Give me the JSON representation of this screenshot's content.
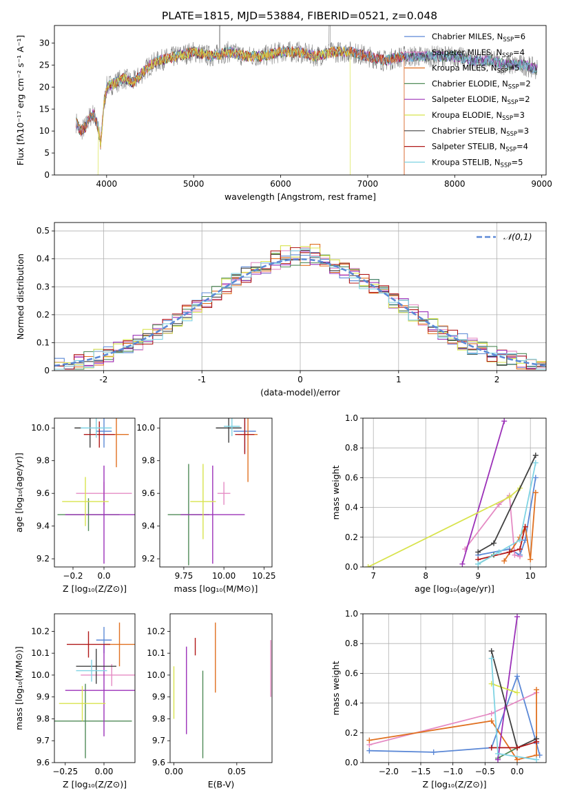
{
  "figure": {
    "title": "PLATE=1815, MJD=53884, FIBERID=0521, z=0.048",
    "models": [
      {
        "label": "Chabrier MILES, N",
        "sub": "SSP",
        "suffix": "=6",
        "color": "#5b88d6"
      },
      {
        "label": "Salpeter MILES, N",
        "sub": "SSP",
        "suffix": "=4",
        "color": "#e58bc4"
      },
      {
        "label": "Kroupa MILES, N",
        "sub": "SSP",
        "suffix": "=5",
        "color": "#e07020"
      },
      {
        "label": "Chabrier ELODIE, N",
        "sub": "SSP",
        "suffix": "=2",
        "color": "#4f8a57"
      },
      {
        "label": "Salpeter ELODIE, N",
        "sub": "SSP",
        "suffix": "=2",
        "color": "#9b30b8"
      },
      {
        "label": "Kroupa ELODIE, N",
        "sub": "SSP",
        "suffix": "=3",
        "color": "#d8e34c"
      },
      {
        "label": "Chabrier STELIB, N",
        "sub": "SSP",
        "suffix": "=3",
        "color": "#404040"
      },
      {
        "label": "Salpeter STELIB, N",
        "sub": "SSP",
        "suffix": "=4",
        "color": "#b01818"
      },
      {
        "label": "Kroupa STELIB, N",
        "sub": "SSP",
        "suffix": "=5",
        "color": "#7fd3e3"
      }
    ]
  },
  "chart_data": [
    {
      "type": "line",
      "id": "spectrum",
      "xlabel": "wavelength [Angstrom, rest frame]",
      "ylabel": "Flux [fλ10⁻¹⁷ erg cm⁻² s⁻¹ A⁻¹]",
      "xlim": [
        3400,
        9050
      ],
      "ylim": [
        0,
        34
      ],
      "xticks": [
        4000,
        5000,
        6000,
        7000,
        8000,
        9000
      ],
      "yticks": [
        0,
        5,
        10,
        15,
        20,
        25,
        30
      ],
      "observed_color": "#808080",
      "continuum_anchors": {
        "x": [
          3650,
          3700,
          3760,
          3800,
          3850,
          3900,
          3930,
          3970,
          4000,
          4100,
          4200,
          4300,
          4400,
          4500,
          4600,
          4800,
          5000,
          5200,
          5400,
          5600,
          5800,
          6000,
          6200,
          6400,
          6600,
          6800,
          7000,
          7200,
          7400,
          7600,
          7800,
          8000,
          8200,
          8400,
          8600,
          8800,
          8950
        ],
        "y": [
          12,
          10,
          11,
          13,
          14,
          11,
          7,
          16,
          20,
          21,
          22,
          21,
          23,
          25,
          26,
          27,
          28,
          27,
          28,
          27,
          27,
          28,
          28,
          27,
          28,
          28,
          27,
          26,
          27,
          27,
          27,
          27,
          26,
          26,
          25,
          25,
          24
        ]
      },
      "model_cutoffs": {
        "Kroupa ELODIE": [
          3900,
          6800
        ],
        "Salpeter STELIB": [
          3650,
          7420
        ],
        "Kroupa MILES": [
          3650,
          7420
        ]
      }
    },
    {
      "type": "step",
      "id": "residual-histogram",
      "xlabel": "(data-model)/error",
      "ylabel": "Normed distribution",
      "xlim": [
        -2.5,
        2.5
      ],
      "ylim": [
        0,
        0.53
      ],
      "xticks": [
        -2,
        -1,
        0,
        1,
        2
      ],
      "yticks": [
        0,
        0.1,
        0.2,
        0.3,
        0.4,
        0.5
      ],
      "bin_width": 0.1,
      "reference": {
        "name": "𝒩(0,1)",
        "color": "#5b88d6"
      }
    },
    {
      "type": "scatter",
      "id": "age-vs-Z",
      "xlabel": "Z [log₁₀(Z/Z⊙)]",
      "ylabel": "age  [log₁₀(age/yr)]",
      "xlim": [
        -0.32,
        0.2
      ],
      "ylim": [
        9.15,
        10.06
      ],
      "xticks": [
        -0.2,
        0.0
      ],
      "yticks": [
        9.2,
        9.4,
        9.6,
        9.8,
        10.0
      ],
      "points": [
        {
          "x": 0.0,
          "y": 9.98,
          "xerr": 0.05,
          "yerr": 0.1,
          "c": 0
        },
        {
          "x": 0.0,
          "y": 9.6,
          "xerr": 0.18,
          "yerr": 0.07,
          "c": 1
        },
        {
          "x": 0.08,
          "y": 9.96,
          "xerr": 0.08,
          "yerr": 0.2,
          "c": 2
        },
        {
          "x": -0.1,
          "y": 9.47,
          "xerr": 0.2,
          "yerr": 0.1,
          "c": 3
        },
        {
          "x": 0.0,
          "y": 9.47,
          "xerr": 0.25,
          "yerr": 0.3,
          "c": 4
        },
        {
          "x": -0.12,
          "y": 9.55,
          "xerr": 0.15,
          "yerr": 0.15,
          "c": 5
        },
        {
          "x": -0.09,
          "y": 10.0,
          "xerr": 0.1,
          "yerr": 0.12,
          "c": 6
        },
        {
          "x": -0.03,
          "y": 9.96,
          "xerr": 0.1,
          "yerr": 0.08,
          "c": 7
        },
        {
          "x": -0.05,
          "y": 10.0,
          "xerr": 0.1,
          "yerr": 0.06,
          "c": 8
        }
      ]
    },
    {
      "type": "scatter",
      "id": "age-vs-mass",
      "xlabel": "mass [log₁₀(M/M⊙)]",
      "ylabel": "",
      "xlim": [
        9.6,
        10.3
      ],
      "ylim": [
        9.15,
        10.06
      ],
      "xticks": [
        9.75,
        10.0,
        10.25
      ],
      "yticks": [
        9.2,
        9.4,
        9.6,
        9.8,
        10.0
      ],
      "points": [
        {
          "x": 10.13,
          "y": 9.98,
          "xerr": 0.07,
          "yerr": 0.13,
          "c": 0
        },
        {
          "x": 10.0,
          "y": 9.6,
          "xerr": 0.04,
          "yerr": 0.07,
          "c": 1
        },
        {
          "x": 10.15,
          "y": 9.96,
          "xerr": 0.06,
          "yerr": 0.29,
          "c": 2
        },
        {
          "x": 9.78,
          "y": 9.47,
          "xerr": 0.13,
          "yerr": 0.31,
          "c": 3
        },
        {
          "x": 9.93,
          "y": 9.47,
          "xerr": 0.2,
          "yerr": 0.3,
          "c": 4
        },
        {
          "x": 9.87,
          "y": 9.55,
          "xerr": 0.08,
          "yerr": 0.23,
          "c": 5
        },
        {
          "x": 10.03,
          "y": 10.0,
          "xerr": 0.08,
          "yerr": 0.09,
          "c": 6
        },
        {
          "x": 10.13,
          "y": 9.96,
          "xerr": 0.06,
          "yerr": 0.12,
          "c": 7
        },
        {
          "x": 10.05,
          "y": 10.01,
          "xerr": 0.05,
          "yerr": 0.06,
          "c": 8
        }
      ]
    },
    {
      "type": "line",
      "id": "weight-vs-age",
      "xlabel": "age  [log₁₀(age/yr)]",
      "ylabel": "mass weight",
      "xlim": [
        6.8,
        10.3
      ],
      "ylim": [
        0,
        1
      ],
      "xticks": [
        7,
        8,
        9,
        10
      ],
      "yticks": [
        0,
        0.2,
        0.4,
        0.6,
        0.8,
        1.0
      ],
      "series": [
        {
          "c": 0,
          "x": [
            9.0,
            9.6,
            9.8,
            9.9,
            10.1
          ],
          "y": [
            0.08,
            0.12,
            0.08,
            0.18,
            0.6
          ]
        },
        {
          "c": 1,
          "x": [
            8.75,
            9.4,
            9.6,
            9.7,
            9.8
          ],
          "y": [
            0.12,
            0.42,
            0.48,
            0.08,
            0.07
          ]
        },
        {
          "c": 2,
          "x": [
            9.5,
            9.8,
            9.9,
            10.0,
            10.1
          ],
          "y": [
            0.04,
            0.2,
            0.27,
            0.05,
            0.5
          ]
        },
        {
          "c": 3,
          "x": [
            9.0,
            9.3
          ],
          "y": [
            0.02,
            0.08
          ]
        },
        {
          "c": 4,
          "x": [
            8.7,
            9.5
          ],
          "y": [
            0.02,
            0.98
          ]
        },
        {
          "c": 5,
          "x": [
            6.9,
            9.6,
            9.8
          ],
          "y": [
            0.0,
            0.47,
            0.53
          ]
        },
        {
          "c": 6,
          "x": [
            9.0,
            9.3,
            10.1
          ],
          "y": [
            0.1,
            0.16,
            0.75
          ]
        },
        {
          "c": 7,
          "x": [
            9.0,
            9.6,
            9.8,
            9.9
          ],
          "y": [
            0.05,
            0.1,
            0.12,
            0.27
          ]
        },
        {
          "c": 8,
          "x": [
            9.0,
            9.4,
            9.8,
            10.1
          ],
          "y": [
            0.02,
            0.1,
            0.18,
            0.7
          ]
        }
      ]
    },
    {
      "type": "scatter",
      "id": "mass-vs-Z",
      "xlabel": "Z [log₁₀(Z/Z⊙)]",
      "ylabel": "mass [log₁₀(M/M⊙)]",
      "xlim": [
        -0.32,
        0.2
      ],
      "ylim": [
        9.6,
        10.28
      ],
      "xticks": [
        -0.25,
        0.0
      ],
      "yticks": [
        9.6,
        9.7,
        9.8,
        9.9,
        10.0,
        10.1,
        10.2
      ],
      "points": [
        {
          "x": 0.0,
          "y": 10.16,
          "xerr": 0.05,
          "yerr": 0.06,
          "c": 0
        },
        {
          "x": 0.05,
          "y": 10.0,
          "xerr": 0.2,
          "yerr": 0.05,
          "c": 1
        },
        {
          "x": 0.1,
          "y": 10.14,
          "xerr": 0.1,
          "yerr": 0.1,
          "c": 2
        },
        {
          "x": -0.12,
          "y": 9.79,
          "xerr": 0.3,
          "yerr": 0.17,
          "c": 3
        },
        {
          "x": 0.0,
          "y": 9.93,
          "xerr": 0.25,
          "yerr": 0.21,
          "c": 4
        },
        {
          "x": -0.14,
          "y": 9.87,
          "xerr": 0.15,
          "yerr": 0.08,
          "c": 5
        },
        {
          "x": -0.05,
          "y": 10.04,
          "xerr": 0.13,
          "yerr": 0.08,
          "c": 6
        },
        {
          "x": -0.1,
          "y": 10.14,
          "xerr": 0.14,
          "yerr": 0.06,
          "c": 7
        },
        {
          "x": -0.08,
          "y": 10.02,
          "xerr": 0.1,
          "yerr": 0.05,
          "c": 8
        }
      ]
    },
    {
      "type": "errorbar",
      "id": "mass-vs-EBV",
      "xlabel": "E(B-V)",
      "ylabel": "",
      "xlim": [
        -0.003,
        0.078
      ],
      "ylim": [
        9.6,
        10.28
      ],
      "xticks": [
        0.0,
        0.05
      ],
      "xticklabels": [
        "0.00",
        "0.05"
      ],
      "yticks": [
        9.6,
        9.7,
        9.8,
        9.9,
        10.0,
        10.1,
        10.2
      ],
      "points": [
        {
          "x": 0.0,
          "y": 9.92,
          "yerr": 0.12,
          "c": 5
        },
        {
          "x": 0.01,
          "y": 9.93,
          "yerr": 0.2,
          "c": 4
        },
        {
          "x": 0.017,
          "y": 10.13,
          "yerr": 0.04,
          "c": 7
        },
        {
          "x": 0.023,
          "y": 9.82,
          "yerr": 0.2,
          "c": 3
        },
        {
          "x": 0.033,
          "y": 10.08,
          "yerr": 0.16,
          "c": 2
        },
        {
          "x": 0.077,
          "y": 10.03,
          "yerr": 0.13,
          "c": 1
        }
      ]
    },
    {
      "type": "line",
      "id": "weight-vs-Z",
      "xlabel": "Z [log₁₀(Z/Z⊙)]",
      "ylabel": "mass weight",
      "xlim": [
        -2.4,
        0.45
      ],
      "ylim": [
        0,
        1
      ],
      "xticks": [
        -2.0,
        -1.5,
        -1.0,
        -0.5,
        0.0
      ],
      "yticks": [
        0,
        0.2,
        0.4,
        0.6,
        0.8,
        1.0
      ],
      "series": [
        {
          "c": 0,
          "x": [
            -2.3,
            -1.3,
            -0.4,
            0.0,
            0.3,
            0.35
          ],
          "y": [
            0.08,
            0.07,
            0.1,
            0.58,
            0.13,
            0.05
          ]
        },
        {
          "c": 1,
          "x": [
            -2.3,
            -0.4,
            0.3
          ],
          "y": [
            0.12,
            0.33,
            0.47
          ]
        },
        {
          "c": 2,
          "x": [
            -2.3,
            -0.4,
            0.0,
            0.3,
            0.3
          ],
          "y": [
            0.15,
            0.28,
            0.02,
            0.05,
            0.49
          ]
        },
        {
          "c": 3,
          "x": [
            -0.3,
            0.0
          ],
          "y": [
            0.03,
            0.1
          ]
        },
        {
          "c": 4,
          "x": [
            -0.3,
            0.0
          ],
          "y": [
            0.02,
            0.98
          ]
        },
        {
          "c": 5,
          "x": [
            -0.4,
            0.0
          ],
          "y": [
            0.53,
            0.47
          ]
        },
        {
          "c": 6,
          "x": [
            -0.4,
            0.0,
            0.3
          ],
          "y": [
            0.75,
            0.1,
            0.16
          ]
        },
        {
          "c": 7,
          "x": [
            -0.4,
            0.0,
            0.3
          ],
          "y": [
            0.1,
            0.1,
            0.14
          ]
        },
        {
          "c": 8,
          "x": [
            -0.4,
            -0.3,
            0.3
          ],
          "y": [
            0.7,
            0.06,
            0.02
          ]
        }
      ]
    }
  ]
}
